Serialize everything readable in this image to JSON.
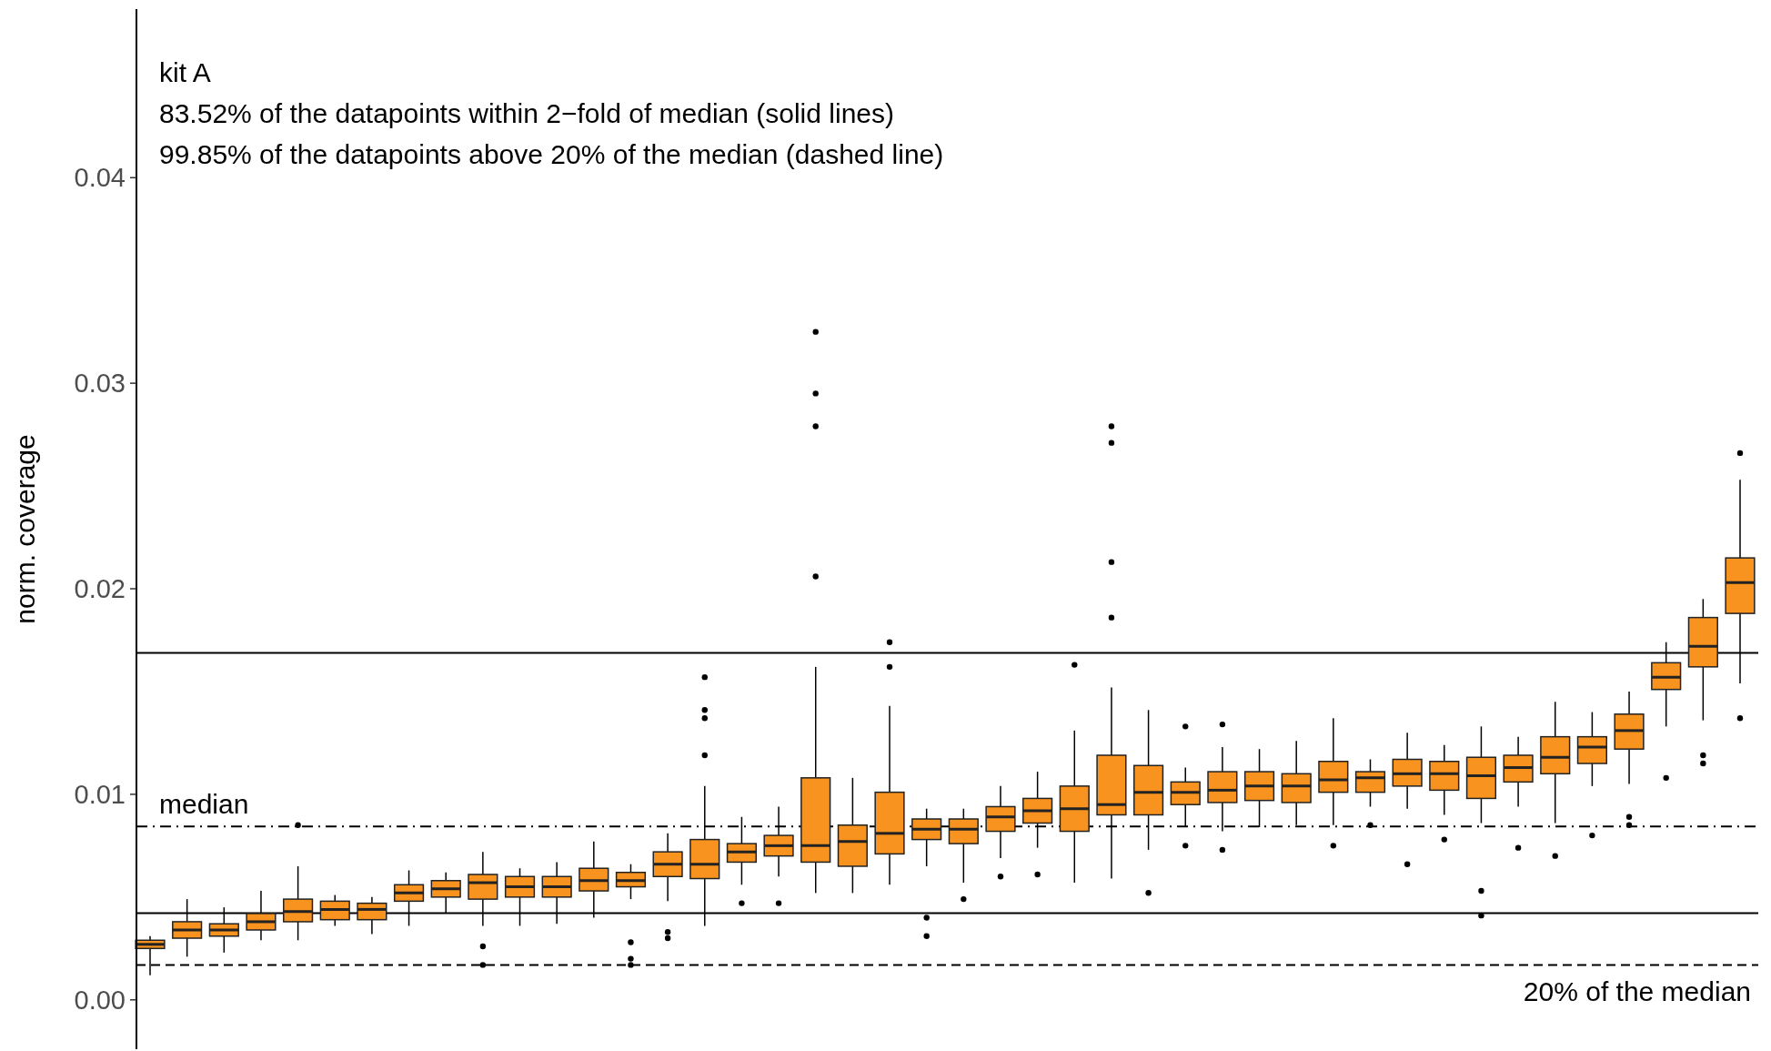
{
  "chart_data": {
    "type": "box",
    "ylabel": "norm. coverage",
    "annotations": [
      "kit A",
      "83.52% of the datapoints within 2−fold of median (solid lines)",
      "99.85% of the datapoints above 20% of the median (dashed line)"
    ],
    "categories": [
      null,
      null,
      null,
      null,
      null,
      null,
      null,
      null,
      null,
      null,
      null,
      null,
      null,
      null,
      null,
      null,
      null,
      null,
      null,
      null,
      null,
      null,
      null,
      null,
      null,
      null,
      null,
      null,
      null,
      null,
      null,
      null,
      null,
      null,
      null,
      null,
      null,
      null,
      null,
      null,
      null,
      null,
      null,
      null
    ],
    "color": "#f7931e",
    "ylim": [
      -0.0024,
      0.0482
    ],
    "yticks": [
      {
        "value": 0,
        "label": "0.00"
      },
      0.01,
      0.02,
      0.03,
      0.04
    ],
    "tick_labels": "y",
    "grid": false,
    "ref_lines": [
      {
        "axis": "y",
        "value": 0.01688,
        "color": "#000000",
        "line_style": "solid"
      },
      {
        "axis": "y",
        "value": 0.00422,
        "color": "#000000",
        "line_style": "solid"
      },
      {
        "axis": "y",
        "value": 0.00844,
        "label": "median",
        "color": "#000000",
        "line_style": "dashdot"
      },
      {
        "axis": "y",
        "value": 0.0017,
        "label": "20% of the median",
        "color": "#000000",
        "line_style": "dashed"
      }
    ],
    "boxes": [
      {
        "low": 0.0012,
        "q1": 0.0025,
        "median": 0.0027,
        "q3": 0.0029,
        "high": 0.0031
      },
      {
        "low": 0.0021,
        "q1": 0.003,
        "median": 0.0034,
        "q3": 0.0038,
        "high": 0.0049
      },
      {
        "low": 0.0023,
        "q1": 0.0031,
        "median": 0.0034,
        "q3": 0.0037,
        "high": 0.0045
      },
      {
        "low": 0.0029,
        "q1": 0.0034,
        "median": 0.0038,
        "q3": 0.0042,
        "high": 0.0053
      },
      {
        "low": 0.0029,
        "q1": 0.0038,
        "median": 0.0043,
        "q3": 0.0049,
        "high": 0.0065,
        "outliers": [
          0.0085
        ]
      },
      {
        "low": 0.0036,
        "q1": 0.0039,
        "median": 0.0044,
        "q3": 0.0048,
        "high": 0.0051
      },
      {
        "low": 0.0032,
        "q1": 0.0039,
        "median": 0.0044,
        "q3": 0.0047,
        "high": 0.005
      },
      {
        "low": 0.0036,
        "q1": 0.0048,
        "median": 0.0052,
        "q3": 0.0056,
        "high": 0.0063
      },
      {
        "low": 0.0042,
        "q1": 0.005,
        "median": 0.0054,
        "q3": 0.0058,
        "high": 0.0062
      },
      {
        "low": 0.0036,
        "q1": 0.0049,
        "median": 0.0057,
        "q3": 0.0061,
        "high": 0.0072,
        "outliers": [
          0.0026,
          0.0017
        ]
      },
      {
        "low": 0.0036,
        "q1": 0.005,
        "median": 0.0055,
        "q3": 0.006,
        "high": 0.0064
      },
      {
        "low": 0.0037,
        "q1": 0.005,
        "median": 0.0055,
        "q3": 0.006,
        "high": 0.0067
      },
      {
        "low": 0.004,
        "q1": 0.0053,
        "median": 0.0058,
        "q3": 0.0064,
        "high": 0.0077
      },
      {
        "low": 0.0049,
        "q1": 0.0055,
        "median": 0.0058,
        "q3": 0.0062,
        "high": 0.0066,
        "outliers": [
          0.0028,
          0.002,
          0.0017
        ]
      },
      {
        "low": 0.0048,
        "q1": 0.006,
        "median": 0.0066,
        "q3": 0.0072,
        "high": 0.0081,
        "outliers": [
          0.0033,
          0.003
        ]
      },
      {
        "low": 0.0036,
        "q1": 0.0059,
        "median": 0.0066,
        "q3": 0.0078,
        "high": 0.0104,
        "outliers": [
          0.0119,
          0.0137,
          0.0141,
          0.0157
        ]
      },
      {
        "low": 0.0056,
        "q1": 0.0067,
        "median": 0.0072,
        "q3": 0.0076,
        "high": 0.0089,
        "outliers": [
          0.0047
        ]
      },
      {
        "low": 0.006,
        "q1": 0.007,
        "median": 0.0075,
        "q3": 0.008,
        "high": 0.0094,
        "outliers": [
          0.0047
        ]
      },
      {
        "low": 0.0052,
        "q1": 0.0067,
        "median": 0.0075,
        "q3": 0.0108,
        "high": 0.0162,
        "outliers": [
          0.0206,
          0.0279,
          0.0295,
          0.0325
        ]
      },
      {
        "low": 0.0052,
        "q1": 0.0065,
        "median": 0.0077,
        "q3": 0.0085,
        "high": 0.0108
      },
      {
        "low": 0.0056,
        "q1": 0.0071,
        "median": 0.0081,
        "q3": 0.0101,
        "high": 0.0143,
        "outliers": [
          0.0162,
          0.0174
        ]
      },
      {
        "low": 0.0065,
        "q1": 0.0078,
        "median": 0.0083,
        "q3": 0.0088,
        "high": 0.0093,
        "outliers": [
          0.004,
          0.0031
        ]
      },
      {
        "low": 0.0057,
        "q1": 0.0076,
        "median": 0.0083,
        "q3": 0.0088,
        "high": 0.0093,
        "outliers": [
          0.0049
        ]
      },
      {
        "low": 0.0069,
        "q1": 0.0082,
        "median": 0.0089,
        "q3": 0.0094,
        "high": 0.0104,
        "outliers": [
          0.006
        ]
      },
      {
        "low": 0.0074,
        "q1": 0.0086,
        "median": 0.0092,
        "q3": 0.0098,
        "high": 0.0111,
        "outliers": [
          0.0061
        ]
      },
      {
        "low": 0.0057,
        "q1": 0.0082,
        "median": 0.0093,
        "q3": 0.0104,
        "high": 0.0131,
        "outliers": [
          0.0163
        ]
      },
      {
        "low": 0.0059,
        "q1": 0.009,
        "median": 0.0095,
        "q3": 0.0119,
        "high": 0.0152,
        "outliers": [
          0.0186,
          0.0213,
          0.0271,
          0.0279
        ]
      },
      {
        "low": 0.0073,
        "q1": 0.009,
        "median": 0.0101,
        "q3": 0.0114,
        "high": 0.0141,
        "outliers": [
          0.0052
        ]
      },
      {
        "low": 0.0084,
        "q1": 0.0095,
        "median": 0.0101,
        "q3": 0.0106,
        "high": 0.0113,
        "outliers": [
          0.0133,
          0.0075
        ]
      },
      {
        "low": 0.0082,
        "q1": 0.0096,
        "median": 0.0102,
        "q3": 0.0111,
        "high": 0.0123,
        "outliers": [
          0.0134,
          0.0073
        ]
      },
      {
        "low": 0.0084,
        "q1": 0.0097,
        "median": 0.0104,
        "q3": 0.0111,
        "high": 0.0122
      },
      {
        "low": 0.0085,
        "q1": 0.0096,
        "median": 0.0104,
        "q3": 0.011,
        "high": 0.0126
      },
      {
        "low": 0.0085,
        "q1": 0.0101,
        "median": 0.0107,
        "q3": 0.0116,
        "high": 0.0137,
        "outliers": [
          0.0075
        ]
      },
      {
        "low": 0.0094,
        "q1": 0.0101,
        "median": 0.0108,
        "q3": 0.0111,
        "high": 0.0117,
        "outliers": [
          0.0085
        ]
      },
      {
        "low": 0.0093,
        "q1": 0.0104,
        "median": 0.011,
        "q3": 0.0117,
        "high": 0.013,
        "outliers": [
          0.0066
        ]
      },
      {
        "low": 0.009,
        "q1": 0.0102,
        "median": 0.011,
        "q3": 0.0116,
        "high": 0.0124,
        "outliers": [
          0.0078
        ]
      },
      {
        "low": 0.0086,
        "q1": 0.0098,
        "median": 0.0109,
        "q3": 0.0118,
        "high": 0.0133,
        "outliers": [
          0.0053,
          0.0041
        ]
      },
      {
        "low": 0.0094,
        "q1": 0.0106,
        "median": 0.0113,
        "q3": 0.0119,
        "high": 0.0128,
        "outliers": [
          0.0074
        ]
      },
      {
        "low": 0.0086,
        "q1": 0.011,
        "median": 0.0118,
        "q3": 0.0128,
        "high": 0.0145,
        "outliers": [
          0.007
        ]
      },
      {
        "low": 0.0104,
        "q1": 0.0115,
        "median": 0.0123,
        "q3": 0.0128,
        "high": 0.014,
        "outliers": [
          0.008
        ]
      },
      {
        "low": 0.0105,
        "q1": 0.0122,
        "median": 0.0131,
        "q3": 0.0139,
        "high": 0.015,
        "outliers": [
          0.0089,
          0.0085
        ]
      },
      {
        "low": 0.0133,
        "q1": 0.0151,
        "median": 0.0157,
        "q3": 0.0164,
        "high": 0.0174,
        "outliers": [
          0.0108
        ]
      },
      {
        "low": 0.0136,
        "q1": 0.0162,
        "median": 0.0172,
        "q3": 0.0186,
        "high": 0.0195,
        "outliers": [
          0.0119,
          0.0115
        ]
      },
      {
        "low": 0.0154,
        "q1": 0.0188,
        "median": 0.0203,
        "q3": 0.0215,
        "high": 0.0253,
        "outliers": [
          0.0266,
          0.0137
        ]
      }
    ]
  }
}
